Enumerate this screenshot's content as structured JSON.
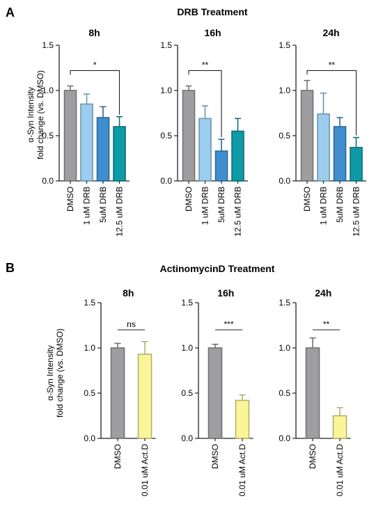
{
  "panels": [
    {
      "letter": "A",
      "title": "DRB Treatment",
      "ylabel_line1": "α-Syn Intensity",
      "ylabel_line2": "fold change (vs. DMSO)"
    },
    {
      "letter": "B",
      "title": "ActinomycinD Treatment",
      "ylabel_line1": "α-Syn Intensity",
      "ylabel_line2": "fold change (vs. DMSO)"
    }
  ],
  "colors": {
    "DMSO": "#9e9ea0",
    "1 uM DRB": "#9bcdee",
    "5uM DRB": "#3f8fd0",
    "12.5 uM DRB": "#0f9aa8",
    "0.01 uM Act.D": "#fbf59a"
  },
  "chart_data": [
    {
      "type": "bar",
      "panel": "A",
      "title": "8h",
      "categories": [
        "DMSO",
        "1 uM DRB",
        "5uM DRB",
        "12.5 uM DRB"
      ],
      "values": [
        1.0,
        0.85,
        0.7,
        0.6
      ],
      "errors": [
        0.05,
        0.11,
        0.12,
        0.11
      ],
      "ylim": [
        0,
        1.5
      ],
      "yticks": [
        "0.0",
        "0.5",
        "1.0",
        "1.5"
      ],
      "significance": [
        {
          "from": 0,
          "to": 3,
          "label": "*"
        }
      ]
    },
    {
      "type": "bar",
      "panel": "A",
      "title": "16h",
      "categories": [
        "DMSO",
        "1 uM DRB",
        "5uM DRB",
        "12.5 uM DRB"
      ],
      "values": [
        1.0,
        0.69,
        0.33,
        0.55
      ],
      "errors": [
        0.05,
        0.14,
        0.13,
        0.14
      ],
      "ylim": [
        0,
        1.5
      ],
      "yticks": [
        "0.0",
        "0.5",
        "1.0",
        "1.5"
      ],
      "significance": [
        {
          "from": 0,
          "to": 2,
          "label": "**"
        }
      ]
    },
    {
      "type": "bar",
      "panel": "A",
      "title": "24h",
      "categories": [
        "DMSO",
        "1 uM DRB",
        "5uM DRB",
        "12.5 uM DRB"
      ],
      "values": [
        1.0,
        0.74,
        0.6,
        0.37
      ],
      "errors": [
        0.11,
        0.23,
        0.1,
        0.11
      ],
      "ylim": [
        0,
        1.5
      ],
      "yticks": [
        "0.0",
        "0.5",
        "1.0",
        "1.5"
      ],
      "significance": [
        {
          "from": 0,
          "to": 3,
          "label": "**"
        }
      ]
    },
    {
      "type": "bar",
      "panel": "B",
      "title": "8h",
      "categories": [
        "DMSO",
        "0.01 uM Act.D"
      ],
      "values": [
        1.0,
        0.93
      ],
      "errors": [
        0.05,
        0.14
      ],
      "ylim": [
        0,
        1.5
      ],
      "yticks": [
        "0.0",
        "0.5",
        "1.0",
        "1.5"
      ],
      "significance": [
        {
          "from": 0,
          "to": 1,
          "label": "ns"
        }
      ]
    },
    {
      "type": "bar",
      "panel": "B",
      "title": "16h",
      "categories": [
        "DMSO",
        "0.01 uM Act.D"
      ],
      "values": [
        1.0,
        0.42
      ],
      "errors": [
        0.04,
        0.06
      ],
      "ylim": [
        0,
        1.5
      ],
      "yticks": [
        "0.0",
        "0.5",
        "1.0",
        "1.5"
      ],
      "significance": [
        {
          "from": 0,
          "to": 1,
          "label": "***"
        }
      ]
    },
    {
      "type": "bar",
      "panel": "B",
      "title": "24h",
      "categories": [
        "DMSO",
        "0.01 uM Act.D"
      ],
      "values": [
        1.0,
        0.25
      ],
      "errors": [
        0.11,
        0.09
      ],
      "ylim": [
        0,
        1.5
      ],
      "yticks": [
        "0.0",
        "0.5",
        "1.0",
        "1.5"
      ],
      "significance": [
        {
          "from": 0,
          "to": 1,
          "label": "**"
        }
      ]
    }
  ]
}
